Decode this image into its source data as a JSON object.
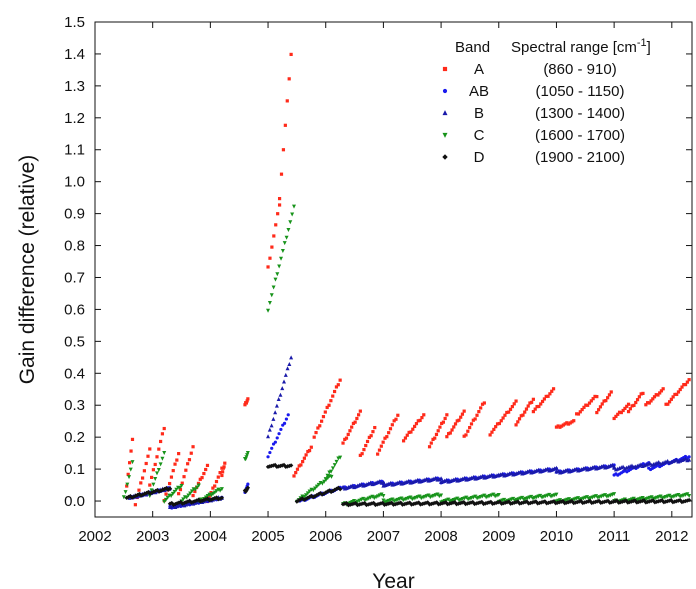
{
  "chart_data": {
    "type": "scatter",
    "title": "",
    "xlabel": "Year",
    "ylabel": "Gain difference (relative)",
    "xlim": [
      2002,
      2012.35
    ],
    "ylim": [
      -0.05,
      1.5
    ],
    "x_ticks": [
      2002,
      2003,
      2004,
      2005,
      2006,
      2007,
      2008,
      2009,
      2010,
      2011,
      2012
    ],
    "y_ticks": [
      0.0,
      0.1,
      0.2,
      0.3,
      0.4,
      0.5,
      0.6,
      0.7,
      0.8,
      0.9,
      1.0,
      1.1,
      1.2,
      1.3,
      1.4,
      1.5
    ],
    "legend": {
      "position": "top-right",
      "headers": [
        "Band",
        "Spectral range [cm",
        "-1",
        "]"
      ],
      "entries": [
        {
          "band": "A",
          "range": "(860 - 910)"
        },
        {
          "band": "AB",
          "range": "(1050 - 1150)"
        },
        {
          "band": "B",
          "range": "(1300 - 1400)"
        },
        {
          "band": "C",
          "range": "(1600 - 1700)"
        },
        {
          "band": "D",
          "range": "(1900 - 2100)"
        }
      ]
    },
    "series": [
      {
        "name": "A",
        "color": "#ff2a1a",
        "marker": "square",
        "segments": [
          {
            "x0": 2002.55,
            "x1": 2002.65,
            "y0": 0.05,
            "y1": 0.19
          },
          {
            "x0": 2002.7,
            "x1": 2002.95,
            "y0": -0.01,
            "y1": 0.16
          },
          {
            "x0": 2002.95,
            "x1": 2003.2,
            "y0": 0.05,
            "y1": 0.23
          },
          {
            "x0": 2003.2,
            "x1": 2003.45,
            "y0": 0.0,
            "y1": 0.15
          },
          {
            "x0": 2003.45,
            "x1": 2003.7,
            "y0": 0.02,
            "y1": 0.17
          },
          {
            "x0": 2003.7,
            "x1": 2003.95,
            "y0": 0.02,
            "y1": 0.11
          },
          {
            "x0": 2003.95,
            "x1": 2004.2,
            "y0": 0.0,
            "y1": 0.1
          },
          {
            "x0": 2004.2,
            "x1": 2004.25,
            "y0": 0.08,
            "y1": 0.12
          },
          {
            "x0": 2004.6,
            "x1": 2004.65,
            "y0": 0.3,
            "y1": 0.32
          },
          {
            "x0": 2005.0,
            "x1": 2005.2,
            "y0": 0.73,
            "y1": 0.93
          },
          {
            "x0": 2005.2,
            "x1": 2005.4,
            "y0": 0.95,
            "y1": 1.4
          },
          {
            "x0": 2005.45,
            "x1": 2005.75,
            "y0": 0.08,
            "y1": 0.17
          },
          {
            "x0": 2005.8,
            "x1": 2006.25,
            "y0": 0.2,
            "y1": 0.38
          },
          {
            "x0": 2006.3,
            "x1": 2006.6,
            "y0": 0.18,
            "y1": 0.28
          },
          {
            "x0": 2006.6,
            "x1": 2006.85,
            "y0": 0.14,
            "y1": 0.23
          },
          {
            "x0": 2006.9,
            "x1": 2007.25,
            "y0": 0.15,
            "y1": 0.27
          },
          {
            "x0": 2007.35,
            "x1": 2007.7,
            "y0": 0.19,
            "y1": 0.27
          },
          {
            "x0": 2007.8,
            "x1": 2008.1,
            "y0": 0.17,
            "y1": 0.27
          },
          {
            "x0": 2008.1,
            "x1": 2008.4,
            "y0": 0.2,
            "y1": 0.28
          },
          {
            "x0": 2008.4,
            "x1": 2008.75,
            "y0": 0.2,
            "y1": 0.31
          },
          {
            "x0": 2008.85,
            "x1": 2009.3,
            "y0": 0.21,
            "y1": 0.31
          },
          {
            "x0": 2009.3,
            "x1": 2009.6,
            "y0": 0.24,
            "y1": 0.32
          },
          {
            "x0": 2009.6,
            "x1": 2009.95,
            "y0": 0.28,
            "y1": 0.35
          },
          {
            "x0": 2010.0,
            "x1": 2010.3,
            "y0": 0.23,
            "y1": 0.25
          },
          {
            "x0": 2010.35,
            "x1": 2010.7,
            "y0": 0.27,
            "y1": 0.33
          },
          {
            "x0": 2010.7,
            "x1": 2010.95,
            "y0": 0.28,
            "y1": 0.34
          },
          {
            "x0": 2011.0,
            "x1": 2011.25,
            "y0": 0.26,
            "y1": 0.3
          },
          {
            "x0": 2011.25,
            "x1": 2011.5,
            "y0": 0.28,
            "y1": 0.34
          },
          {
            "x0": 2011.55,
            "x1": 2011.85,
            "y0": 0.3,
            "y1": 0.35
          },
          {
            "x0": 2011.9,
            "x1": 2012.3,
            "y0": 0.3,
            "y1": 0.38
          }
        ]
      },
      {
        "name": "AB",
        "color": "#1a1aee",
        "marker": "circle",
        "segments": [
          {
            "x0": 2002.6,
            "x1": 2003.3,
            "y0": 0.01,
            "y1": 0.04
          },
          {
            "x0": 2003.3,
            "x1": 2004.2,
            "y0": -0.02,
            "y1": 0.01
          },
          {
            "x0": 2004.6,
            "x1": 2004.65,
            "y0": 0.03,
            "y1": 0.05
          },
          {
            "x0": 2005.0,
            "x1": 2005.35,
            "y0": 0.14,
            "y1": 0.27
          },
          {
            "x0": 2005.55,
            "x1": 2006.25,
            "y0": 0.0,
            "y1": 0.04
          },
          {
            "x0": 2006.3,
            "x1": 2007.0,
            "y0": 0.04,
            "y1": 0.06
          },
          {
            "x0": 2007.0,
            "x1": 2008.0,
            "y0": 0.05,
            "y1": 0.07
          },
          {
            "x0": 2008.0,
            "x1": 2009.0,
            "y0": 0.06,
            "y1": 0.08
          },
          {
            "x0": 2009.0,
            "x1": 2010.0,
            "y0": 0.08,
            "y1": 0.1
          },
          {
            "x0": 2010.0,
            "x1": 2011.0,
            "y0": 0.09,
            "y1": 0.11
          },
          {
            "x0": 2011.0,
            "x1": 2011.6,
            "y0": 0.08,
            "y1": 0.12
          },
          {
            "x0": 2011.6,
            "x1": 2012.3,
            "y0": 0.1,
            "y1": 0.14
          }
        ]
      },
      {
        "name": "B",
        "color": "#1a1aaa",
        "marker": "triangle-up",
        "segments": [
          {
            "x0": 2002.6,
            "x1": 2003.3,
            "y0": 0.01,
            "y1": 0.04
          },
          {
            "x0": 2003.3,
            "x1": 2004.2,
            "y0": -0.02,
            "y1": 0.01
          },
          {
            "x0": 2005.0,
            "x1": 2005.4,
            "y0": 0.2,
            "y1": 0.45
          },
          {
            "x0": 2006.3,
            "x1": 2007.0,
            "y0": 0.04,
            "y1": 0.06
          },
          {
            "x0": 2007.0,
            "x1": 2008.0,
            "y0": 0.05,
            "y1": 0.07
          },
          {
            "x0": 2008.0,
            "x1": 2009.0,
            "y0": 0.06,
            "y1": 0.08
          },
          {
            "x0": 2009.0,
            "x1": 2010.0,
            "y0": 0.08,
            "y1": 0.1
          },
          {
            "x0": 2010.0,
            "x1": 2011.0,
            "y0": 0.09,
            "y1": 0.11
          },
          {
            "x0": 2011.0,
            "x1": 2012.3,
            "y0": 0.1,
            "y1": 0.13
          }
        ]
      },
      {
        "name": "C",
        "color": "#17931a",
        "marker": "triangle-down",
        "segments": [
          {
            "x0": 2002.5,
            "x1": 2002.65,
            "y0": 0.01,
            "y1": 0.12
          },
          {
            "x0": 2002.95,
            "x1": 2003.2,
            "y0": 0.02,
            "y1": 0.15
          },
          {
            "x0": 2003.2,
            "x1": 2003.5,
            "y0": 0.0,
            "y1": 0.05
          },
          {
            "x0": 2003.5,
            "x1": 2003.8,
            "y0": 0.0,
            "y1": 0.05
          },
          {
            "x0": 2003.8,
            "x1": 2004.2,
            "y0": 0.0,
            "y1": 0.04
          },
          {
            "x0": 2004.6,
            "x1": 2004.65,
            "y0": 0.13,
            "y1": 0.15
          },
          {
            "x0": 2005.0,
            "x1": 2005.45,
            "y0": 0.6,
            "y1": 0.92
          },
          {
            "x0": 2005.5,
            "x1": 2006.1,
            "y0": 0.0,
            "y1": 0.08
          },
          {
            "x0": 2006.0,
            "x1": 2006.25,
            "y0": 0.07,
            "y1": 0.14
          },
          {
            "x0": 2006.3,
            "x1": 2007.0,
            "y0": -0.01,
            "y1": 0.02
          },
          {
            "x0": 2007.0,
            "x1": 2008.0,
            "y0": 0.0,
            "y1": 0.02
          },
          {
            "x0": 2008.0,
            "x1": 2009.0,
            "y0": 0.0,
            "y1": 0.02
          },
          {
            "x0": 2009.0,
            "x1": 2010.0,
            "y0": 0.0,
            "y1": 0.02
          },
          {
            "x0": 2010.0,
            "x1": 2011.0,
            "y0": 0.0,
            "y1": 0.02
          },
          {
            "x0": 2011.0,
            "x1": 2012.3,
            "y0": 0.0,
            "y1": 0.02
          }
        ]
      },
      {
        "name": "D",
        "color": "#111111",
        "marker": "diamond",
        "segments": [
          {
            "x0": 2002.55,
            "x1": 2003.3,
            "y0": 0.01,
            "y1": 0.04
          },
          {
            "x0": 2003.3,
            "x1": 2004.2,
            "y0": -0.01,
            "y1": 0.01
          },
          {
            "x0": 2004.6,
            "x1": 2004.65,
            "y0": 0.03,
            "y1": 0.04
          },
          {
            "x0": 2005.0,
            "x1": 2005.4,
            "y0": 0.11,
            "y1": 0.11
          },
          {
            "x0": 2005.5,
            "x1": 2006.25,
            "y0": 0.0,
            "y1": 0.04
          },
          {
            "x0": 2006.3,
            "x1": 2012.3,
            "y0": -0.01,
            "y1": 0.0
          }
        ]
      }
    ]
  }
}
